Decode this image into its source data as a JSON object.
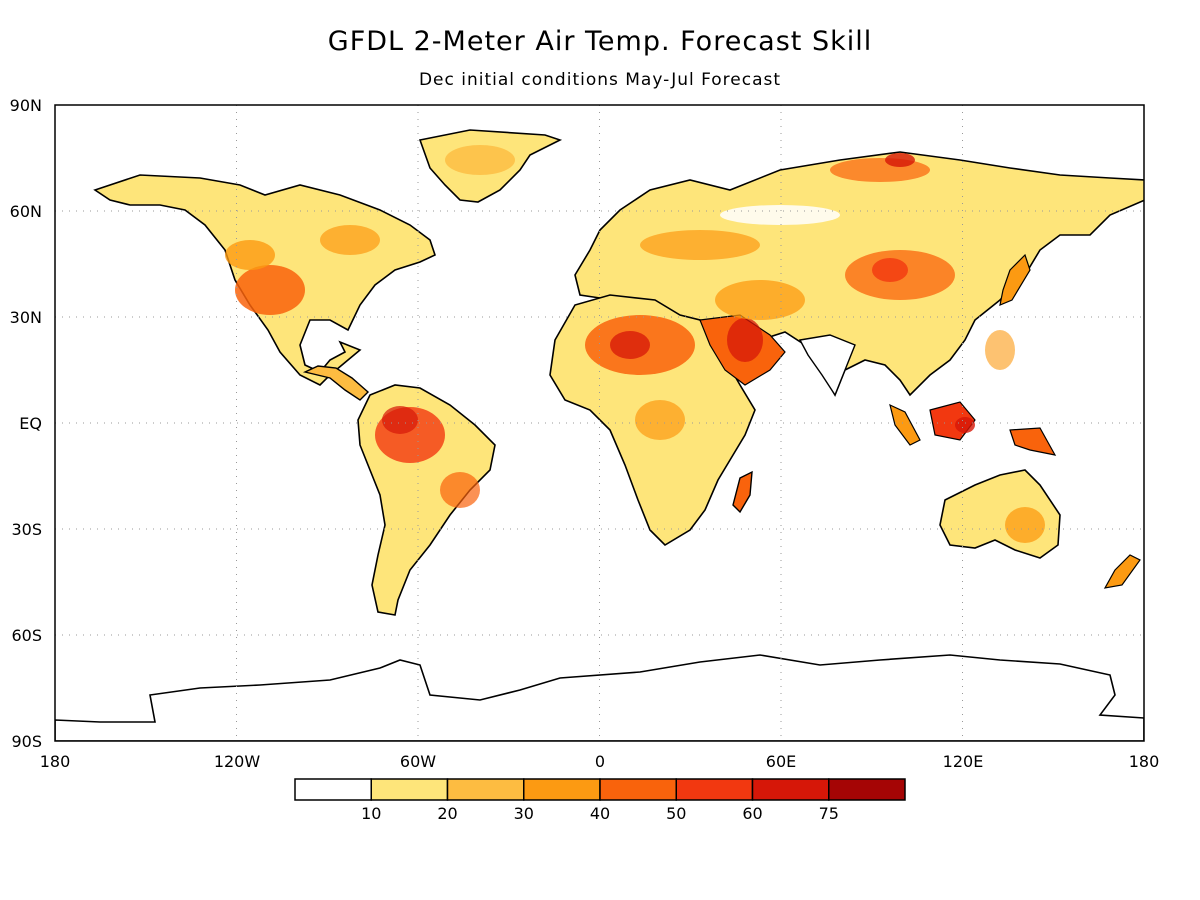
{
  "title": "GFDL 2-Meter Air Temp. Forecast Skill",
  "subtitle": "Dec initial conditions   May-Jul Forecast",
  "axes": {
    "lat_labels": [
      "90N",
      "60N",
      "30N",
      "EQ",
      "30S",
      "60S",
      "90S"
    ],
    "lon_labels": [
      "180",
      "120W",
      "60W",
      "0",
      "60E",
      "120E",
      "180"
    ]
  },
  "legend": {
    "ticks": [
      "10",
      "20",
      "30",
      "40",
      "50",
      "60",
      "75"
    ],
    "colors": [
      "#ffffff",
      "#fee57a",
      "#fdbc41",
      "#fc9a12",
      "#f9630c",
      "#f23810",
      "#d61708",
      "#a50505"
    ]
  },
  "chart_data": {
    "type": "heatmap",
    "title": "GFDL 2-Meter Air Temp. Forecast Skill",
    "subtitle": "Dec initial conditions   May-Jul Forecast",
    "xlim": [
      -180,
      180
    ],
    "ylim": [
      -90,
      90
    ],
    "grid": true,
    "colorbar_levels": [
      10,
      20,
      30,
      40,
      50,
      60,
      75
    ]
  }
}
